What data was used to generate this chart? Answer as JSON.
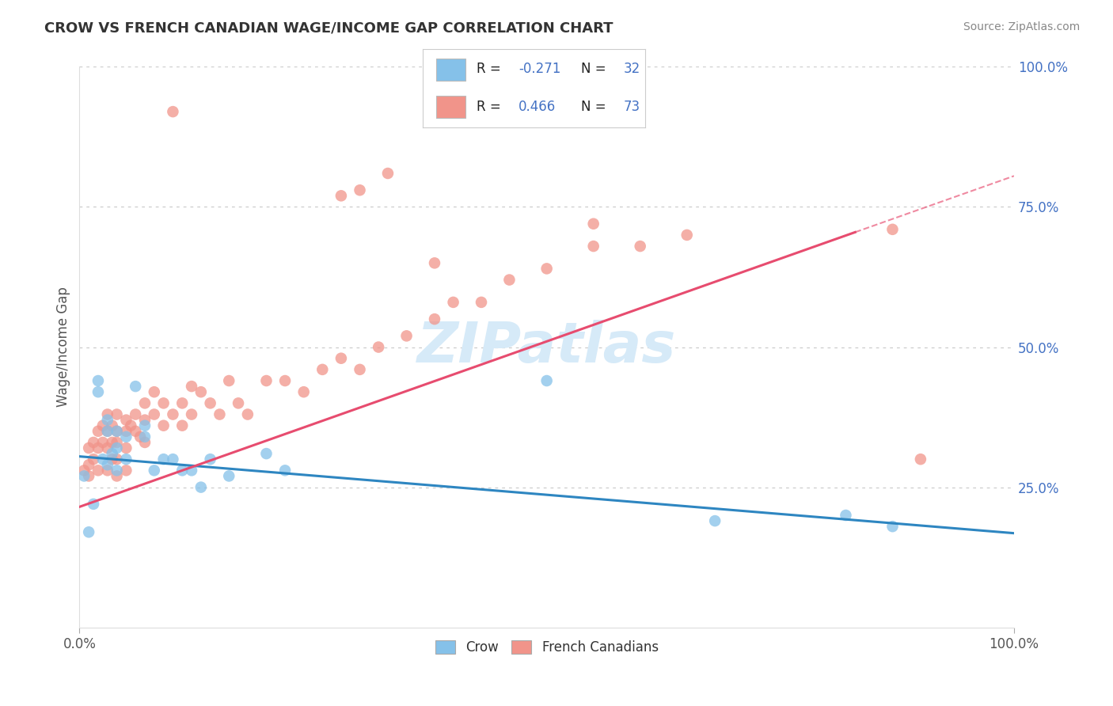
{
  "title": "CROW VS FRENCH CANADIAN WAGE/INCOME GAP CORRELATION CHART",
  "source": "Source: ZipAtlas.com",
  "ylabel": "Wage/Income Gap",
  "legend_crow": "Crow",
  "legend_french": "French Canadians",
  "crow_R": -0.271,
  "crow_N": 32,
  "french_R": 0.466,
  "french_N": 73,
  "crow_color": "#85C1E9",
  "french_color": "#F1948A",
  "crow_line_color": "#2E86C1",
  "french_line_color": "#E74C6F",
  "crow_scatter_x": [
    0.005,
    0.01,
    0.015,
    0.02,
    0.02,
    0.025,
    0.03,
    0.03,
    0.03,
    0.035,
    0.04,
    0.04,
    0.04,
    0.05,
    0.05,
    0.06,
    0.07,
    0.07,
    0.08,
    0.09,
    0.1,
    0.11,
    0.12,
    0.13,
    0.14,
    0.16,
    0.2,
    0.22,
    0.5,
    0.68,
    0.82,
    0.87
  ],
  "crow_scatter_y": [
    0.27,
    0.17,
    0.22,
    0.44,
    0.42,
    0.3,
    0.37,
    0.35,
    0.29,
    0.31,
    0.35,
    0.32,
    0.28,
    0.34,
    0.3,
    0.43,
    0.36,
    0.34,
    0.28,
    0.3,
    0.3,
    0.28,
    0.28,
    0.25,
    0.3,
    0.27,
    0.31,
    0.28,
    0.44,
    0.19,
    0.2,
    0.18
  ],
  "french_scatter_x": [
    0.005,
    0.01,
    0.01,
    0.01,
    0.015,
    0.015,
    0.02,
    0.02,
    0.02,
    0.025,
    0.025,
    0.03,
    0.03,
    0.03,
    0.03,
    0.035,
    0.035,
    0.035,
    0.04,
    0.04,
    0.04,
    0.04,
    0.04,
    0.05,
    0.05,
    0.05,
    0.05,
    0.055,
    0.06,
    0.06,
    0.065,
    0.07,
    0.07,
    0.07,
    0.08,
    0.08,
    0.09,
    0.09,
    0.1,
    0.11,
    0.11,
    0.12,
    0.12,
    0.13,
    0.14,
    0.15,
    0.16,
    0.17,
    0.18,
    0.2,
    0.22,
    0.24,
    0.26,
    0.28,
    0.3,
    0.32,
    0.35,
    0.38,
    0.4,
    0.43,
    0.46,
    0.5,
    0.55,
    0.6,
    0.65,
    0.28,
    0.3,
    0.33,
    0.1,
    0.38,
    0.9,
    0.87,
    0.55
  ],
  "french_scatter_y": [
    0.28,
    0.32,
    0.29,
    0.27,
    0.33,
    0.3,
    0.35,
    0.32,
    0.28,
    0.36,
    0.33,
    0.38,
    0.35,
    0.32,
    0.28,
    0.36,
    0.33,
    0.3,
    0.38,
    0.35,
    0.33,
    0.3,
    0.27,
    0.37,
    0.35,
    0.32,
    0.28,
    0.36,
    0.38,
    0.35,
    0.34,
    0.4,
    0.37,
    0.33,
    0.42,
    0.38,
    0.4,
    0.36,
    0.38,
    0.4,
    0.36,
    0.43,
    0.38,
    0.42,
    0.4,
    0.38,
    0.44,
    0.4,
    0.38,
    0.44,
    0.44,
    0.42,
    0.46,
    0.48,
    0.46,
    0.5,
    0.52,
    0.55,
    0.58,
    0.58,
    0.62,
    0.64,
    0.68,
    0.68,
    0.7,
    0.77,
    0.78,
    0.81,
    0.92,
    0.65,
    0.3,
    0.71,
    0.72
  ],
  "ytick_labels": [
    "25.0%",
    "50.0%",
    "75.0%",
    "100.0%"
  ],
  "ytick_values": [
    0.25,
    0.5,
    0.75,
    1.0
  ],
  "xtick_labels": [
    "0.0%",
    "100.0%"
  ],
  "xtick_values": [
    0.0,
    1.0
  ],
  "background_color": "#FFFFFF",
  "grid_color": "#CCCCCC",
  "right_axis_label_color": "#4472C4",
  "watermark_text": "ZIPatlas",
  "watermark_color": "#D6EAF8"
}
